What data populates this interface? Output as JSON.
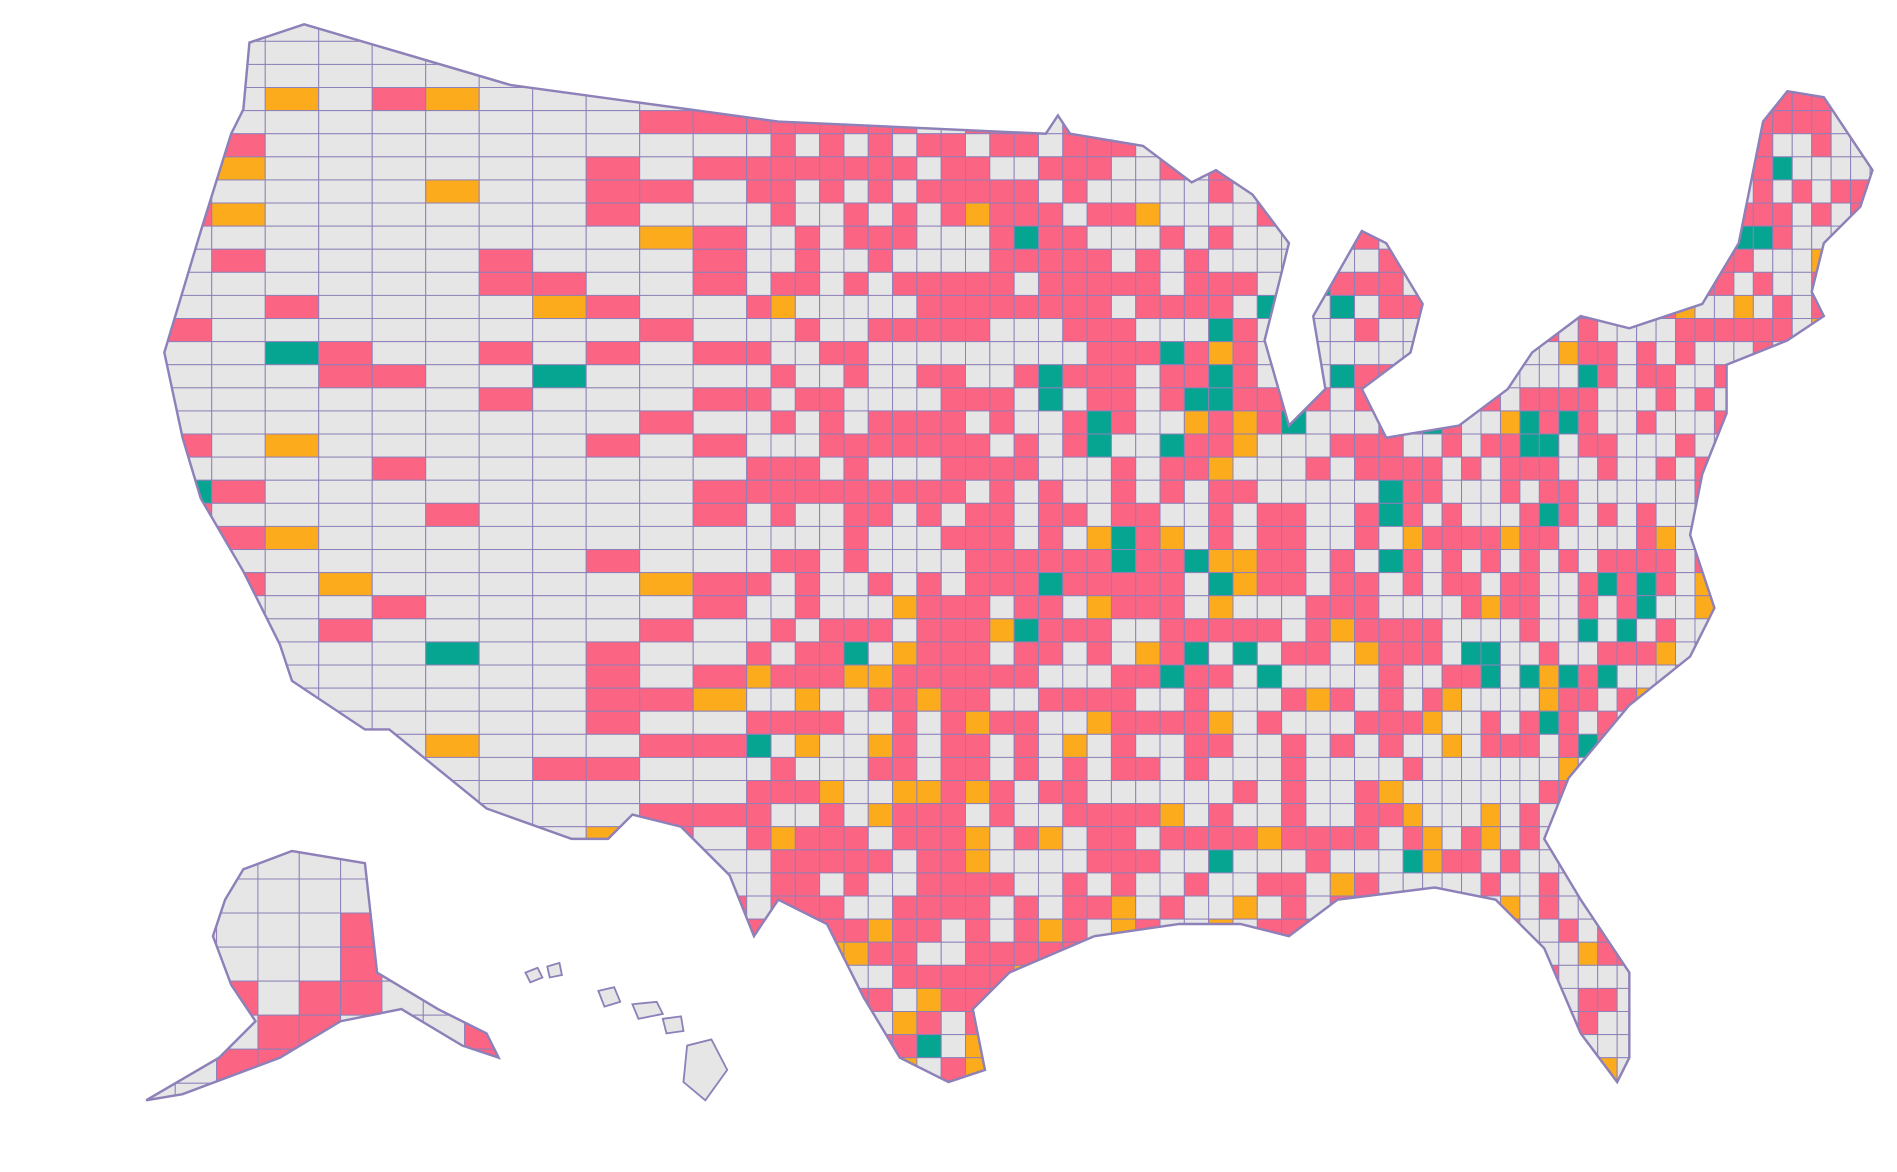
{
  "map": {
    "background": "#ffffff",
    "base_fill": "#e6e6e6",
    "border_color": "#8e80b8",
    "fills": [
      "#fb6483",
      "#fcab1c",
      "#06a591"
    ]
  }
}
